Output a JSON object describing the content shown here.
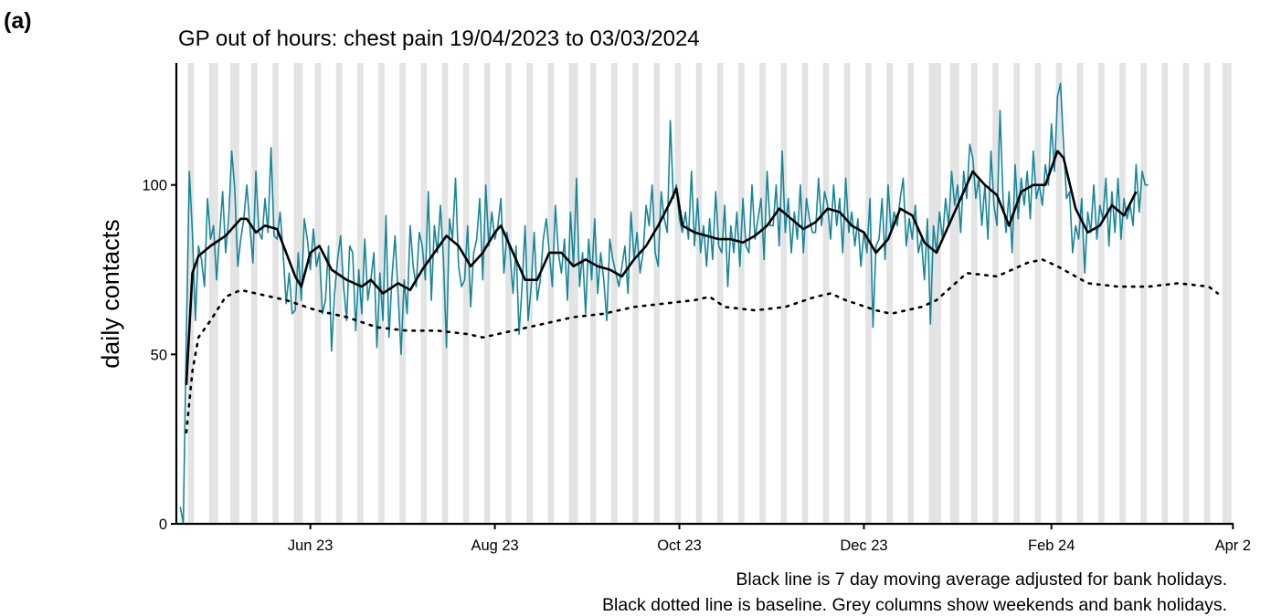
{
  "chart_data": {
    "type": "line",
    "panel_label": "(a)",
    "title": "GP out of hours: chest pain 19/04/2023 to 03/03/2024",
    "y_label": "daily contacts",
    "notes": [
      "Black line is 7 day moving average adjusted for bank holidays.",
      "Black dotted line is baseline. Grey columns show weekends and bank holidays."
    ],
    "xlim": [
      -1.3,
      348.2
    ],
    "xticks": [
      {
        "value": 43,
        "label": "Jun 23"
      },
      {
        "value": 104,
        "label": "Aug 23"
      },
      {
        "value": 165,
        "label": "Oct 23"
      },
      {
        "value": 226,
        "label": "Dec 23"
      },
      {
        "value": 288,
        "label": "Feb 24"
      },
      {
        "value": 348,
        "label": "Apr 2"
      }
    ],
    "ylim": [
      0,
      136
    ],
    "yticks": [
      0,
      50,
      100
    ],
    "shade_color": "#e3e3e3",
    "shaded_days": [
      3,
      4,
      10,
      11,
      12,
      17,
      18,
      19,
      24,
      25,
      31,
      32,
      38,
      39,
      40,
      45,
      46,
      52,
      53,
      59,
      60,
      66,
      67,
      73,
      74,
      80,
      81,
      87,
      88,
      94,
      95,
      101,
      102,
      108,
      109,
      115,
      116,
      122,
      123,
      129,
      130,
      131,
      136,
      137,
      143,
      144,
      150,
      151,
      157,
      158,
      164,
      165,
      171,
      172,
      178,
      179,
      185,
      186,
      192,
      193,
      199,
      200,
      206,
      207,
      213,
      214,
      220,
      221,
      227,
      228,
      234,
      235,
      241,
      242,
      248,
      249,
      250,
      251,
      255,
      256,
      257,
      262,
      263,
      269,
      270,
      276,
      277,
      283,
      284,
      290,
      291,
      297,
      298,
      304,
      305,
      311,
      312,
      318,
      319,
      325,
      326,
      332,
      333,
      339,
      340,
      345,
      346,
      347
    ],
    "series": [
      {
        "color": "#16869b",
        "style": "solid",
        "width": 1.6,
        "x": [
          0,
          1,
          2,
          3,
          4,
          5,
          6,
          7,
          8,
          9,
          10,
          11,
          12,
          13,
          14,
          15,
          16,
          17,
          18,
          19,
          20,
          21,
          22,
          23,
          24,
          25,
          26,
          27,
          28,
          29,
          30,
          31,
          32,
          33,
          34,
          35,
          36,
          37,
          38,
          39,
          40,
          41,
          42,
          43,
          44,
          45,
          46,
          47,
          48,
          49,
          50,
          51,
          52,
          53,
          54,
          55,
          56,
          57,
          58,
          59,
          60,
          61,
          62,
          63,
          64,
          65,
          66,
          67,
          68,
          69,
          70,
          71,
          72,
          73,
          74,
          75,
          76,
          77,
          78,
          79,
          80,
          81,
          82,
          83,
          84,
          85,
          86,
          87,
          88,
          89,
          90,
          91,
          92,
          93,
          94,
          95,
          96,
          97,
          98,
          99,
          100,
          101,
          102,
          103,
          104,
          105,
          106,
          107,
          108,
          109,
          110,
          111,
          112,
          113,
          114,
          115,
          116,
          117,
          118,
          119,
          120,
          121,
          122,
          123,
          124,
          125,
          126,
          127,
          128,
          129,
          130,
          131,
          132,
          133,
          134,
          135,
          136,
          137,
          138,
          139,
          140,
          141,
          142,
          143,
          144,
          145,
          146,
          147,
          148,
          149,
          150,
          151,
          152,
          153,
          154,
          155,
          156,
          157,
          158,
          159,
          160,
          161,
          162,
          163,
          164,
          165,
          166,
          167,
          168,
          169,
          170,
          171,
          172,
          173,
          174,
          175,
          176,
          177,
          178,
          179,
          180,
          181,
          182,
          183,
          184,
          185,
          186,
          187,
          188,
          189,
          190,
          191,
          192,
          193,
          194,
          195,
          196,
          197,
          198,
          199,
          200,
          201,
          202,
          203,
          204,
          205,
          206,
          207,
          208,
          209,
          210,
          211,
          212,
          213,
          214,
          215,
          216,
          217,
          218,
          219,
          220,
          221,
          222,
          223,
          224,
          225,
          226,
          227,
          228,
          229,
          230,
          231,
          232,
          233,
          234,
          235,
          236,
          237,
          238,
          239,
          240,
          241,
          242,
          243,
          244,
          245,
          246,
          247,
          248,
          249,
          250,
          251,
          252,
          253,
          254,
          255,
          256,
          257,
          258,
          259,
          260,
          261,
          262,
          263,
          264,
          265,
          266,
          267,
          268,
          269,
          270,
          271,
          272,
          273,
          274,
          275,
          276,
          277,
          278,
          279,
          280,
          281,
          282,
          283,
          284,
          285,
          286,
          287,
          288,
          289,
          290,
          291,
          292,
          293,
          294,
          295,
          296,
          297,
          298,
          299,
          300,
          301,
          302,
          303,
          304,
          305,
          306,
          307,
          308,
          309,
          310,
          311,
          312,
          313,
          314,
          315,
          316,
          317,
          318,
          319,
          320
        ],
        "values": [
          5,
          0,
          55,
          104,
          86,
          60,
          82,
          78,
          70,
          96,
          84,
          88,
          72,
          85,
          98,
          80,
          90,
          110,
          99,
          76,
          84,
          90,
          100,
          88,
          77,
          104,
          86,
          84,
          96,
          86,
          111,
          85,
          84,
          92,
          80,
          65,
          74,
          62,
          63,
          80,
          66,
          90,
          84,
          75,
          87,
          76,
          80,
          62,
          66,
          82,
          51,
          68,
          78,
          85,
          70,
          60,
          82,
          80,
          57,
          75,
          62,
          84,
          66,
          72,
          80,
          52,
          74,
          60,
          91,
          55,
          73,
          85,
          68,
          50,
          72,
          62,
          88,
          76,
          70,
          86,
          82,
          72,
          98,
          66,
          88,
          80,
          94,
          78,
          52,
          90,
          84,
          102,
          76,
          70,
          72,
          88,
          64,
          80,
          84,
          96,
          72,
          100,
          82,
          92,
          84,
          88,
          96,
          74,
          86,
          80,
          68,
          82,
          56,
          70,
          88,
          60,
          70,
          86,
          66,
          72,
          84,
          90,
          80,
          70,
          94,
          80,
          74,
          84,
          66,
          92,
          76,
          102,
          70,
          80,
          62,
          84,
          72,
          90,
          68,
          80,
          72,
          60,
          84,
          78,
          74,
          70,
          76,
          82,
          68,
          92,
          78,
          86,
          74,
          80,
          94,
          88,
          100,
          80,
          76,
          98,
          90,
          86,
          119,
          96,
          100,
          90,
          86,
          92,
          84,
          104,
          82,
          96,
          80,
          88,
          76,
          90,
          78,
          98,
          82,
          80,
          94,
          70,
          88,
          80,
          92,
          76,
          96,
          82,
          80,
          100,
          84,
          90,
          96,
          78,
          104,
          88,
          88,
          100,
          82,
          110,
          86,
          96,
          80,
          92,
          84,
          100,
          80,
          96,
          90,
          86,
          86,
          102,
          88,
          98,
          94,
          84,
          100,
          88,
          96,
          80,
          102,
          86,
          92,
          82,
          90,
          76,
          86,
          80,
          96,
          58,
          82,
          84,
          96,
          78,
          100,
          86,
          92,
          88,
          96,
          102,
          82,
          90,
          84,
          94,
          80,
          84,
          72,
          90,
          59,
          88,
          80,
          92,
          84,
          96,
          88,
          104,
          94,
          100,
          86,
          104,
          96,
          112,
          108,
          96,
          102,
          88,
          100,
          84,
          110,
          94,
          88,
          122,
          96,
          86,
          98,
          80,
          106,
          90,
          102,
          94,
          104,
          90,
          110,
          96,
          100,
          94,
          106,
          100,
          118,
          104,
          126,
          130,
          112,
          96,
          98,
          80,
          88,
          84,
          96,
          74,
          92,
          86,
          100,
          84,
          94,
          90,
          102,
          82,
          98,
          86,
          102,
          84,
          96,
          90,
          94,
          88,
          106,
          92,
          104,
          100,
          100
        ]
      },
      {
        "color": "#000000",
        "style": "solid",
        "width": 2.6,
        "x": [
          2,
          4,
          6,
          10,
          15,
          20,
          22,
          25,
          28,
          32,
          35,
          38,
          40,
          43,
          46,
          50,
          55,
          60,
          63,
          67,
          72,
          76,
          80,
          84,
          88,
          92,
          96,
          100,
          104,
          106,
          110,
          114,
          118,
          122,
          126,
          130,
          134,
          138,
          142,
          146,
          150,
          154,
          158,
          162,
          164,
          166,
          170,
          174,
          178,
          182,
          186,
          190,
          194,
          198,
          202,
          206,
          210,
          214,
          218,
          222,
          226,
          230,
          234,
          238,
          242,
          246,
          250,
          254,
          258,
          262,
          266,
          270,
          274,
          278,
          282,
          286,
          290,
          292,
          296,
          300,
          304,
          308,
          312,
          316
        ],
        "values": [
          41,
          74,
          79,
          82,
          85,
          90,
          90,
          86,
          88,
          87,
          80,
          73,
          70,
          80,
          82,
          75,
          72,
          70,
          72,
          68,
          71,
          69,
          75,
          80,
          85,
          82,
          76,
          80,
          86,
          88,
          80,
          72,
          72,
          80,
          80,
          76,
          78,
          76,
          75,
          73,
          78,
          82,
          88,
          95,
          99,
          88,
          86,
          85,
          84,
          84,
          83,
          85,
          88,
          93,
          90,
          87,
          89,
          93,
          92,
          88,
          86,
          80,
          84,
          93,
          91,
          83,
          80,
          88,
          96,
          104,
          100,
          97,
          88,
          98,
          100,
          100,
          110,
          108,
          93,
          86,
          88,
          94,
          91,
          98
        ]
      },
      {
        "color": "#000000",
        "style": "dotted",
        "width": 2.6,
        "x": [
          2,
          4,
          6,
          10,
          15,
          20,
          25,
          35,
          45,
          55,
          65,
          75,
          85,
          95,
          100,
          110,
          120,
          130,
          140,
          150,
          160,
          170,
          175,
          180,
          190,
          200,
          210,
          215,
          220,
          230,
          235,
          245,
          250,
          255,
          260,
          270,
          280,
          285,
          290,
          300,
          310,
          320,
          330,
          340,
          343
        ],
        "values": [
          27,
          45,
          55,
          60,
          67,
          69,
          68,
          66,
          63,
          61,
          58,
          57,
          57,
          56,
          55,
          57,
          59,
          61,
          62,
          64,
          65,
          66,
          67,
          64,
          63,
          64,
          67,
          68,
          66,
          63,
          62,
          64,
          66,
          70,
          74,
          73,
          77,
          78,
          76,
          71,
          70,
          70,
          71,
          70,
          68
        ]
      }
    ]
  }
}
